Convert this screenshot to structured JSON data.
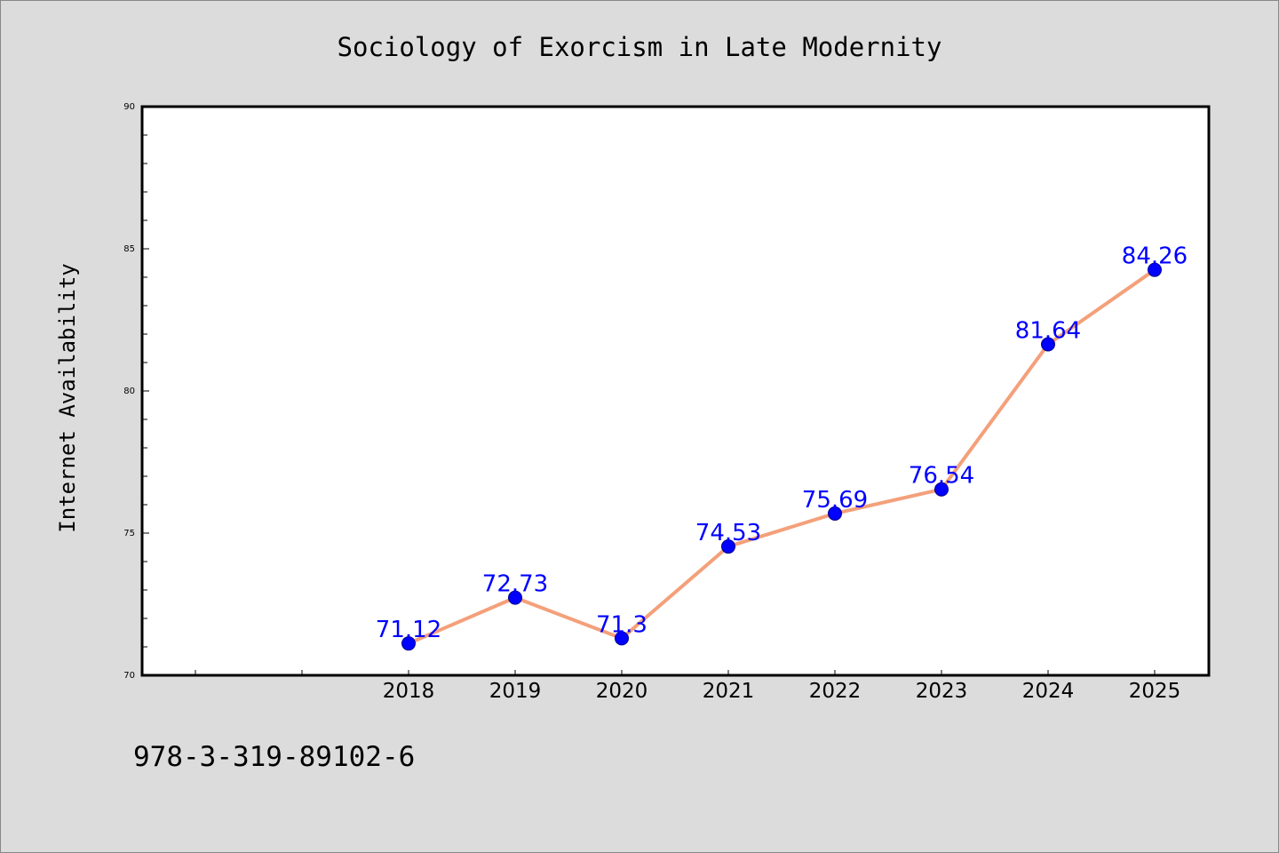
{
  "chart_data": {
    "type": "line",
    "title": "Sociology of Exorcism in Late Modernity",
    "xlabel": "",
    "ylabel": "Internet Availability",
    "categories": [
      "2018",
      "2019",
      "2020",
      "2021",
      "2022",
      "2023",
      "2024",
      "2025"
    ],
    "values": [
      71.12,
      72.73,
      71.3,
      74.53,
      75.69,
      76.54,
      81.64,
      84.26
    ],
    "data_labels": [
      "71.12",
      "72.73",
      "71.3",
      "74.53",
      "75.69",
      "76.54",
      "81.64",
      "84.26"
    ],
    "ylim": [
      70,
      90
    ],
    "yticks": [
      "70",
      "75",
      "80",
      "85",
      "90"
    ],
    "grid": false,
    "legend": "none",
    "colors": {
      "line": "#f4a07a",
      "marker": "#0000ff",
      "data_label": "#0000ff",
      "background": "#dcdcdc",
      "plot_area": "#ffffff"
    }
  },
  "footer": {
    "isbn": "978-3-319-89102-6"
  }
}
